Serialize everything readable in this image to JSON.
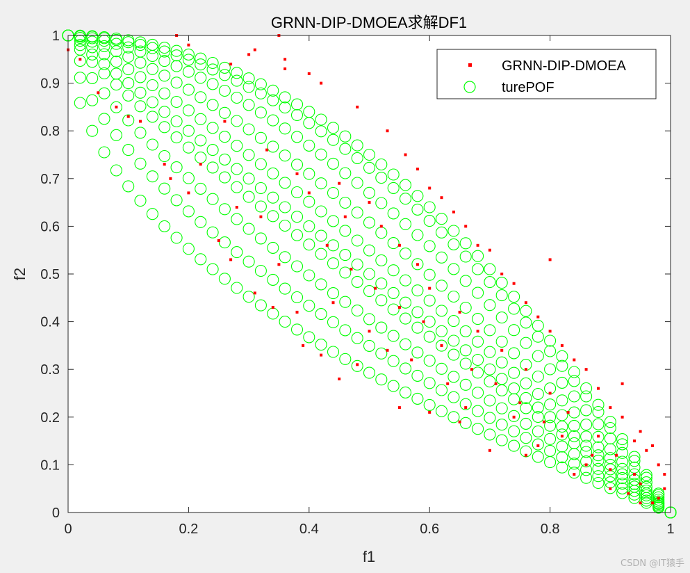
{
  "chart_data": {
    "type": "scatter",
    "title": "GRNN-DIP-DMOEA求解DF1",
    "xlabel": "f1",
    "ylabel": "f2",
    "xlim": [
      0,
      1
    ],
    "ylim": [
      0,
      1
    ],
    "xticks": [
      "0",
      "0.2",
      "0.4",
      "0.6",
      "0.8",
      "1"
    ],
    "yticks": [
      "0",
      "0.1",
      "0.2",
      "0.3",
      "0.4",
      "0.5",
      "0.6",
      "0.7",
      "0.8",
      "0.9",
      "1"
    ],
    "grid": false,
    "legend_position": "top-right",
    "series": [
      {
        "name": "GRNN-DIP-DMOEA",
        "marker": "dot",
        "color": "#ff0000",
        "points": [
          [
            0.18,
            1.0
          ],
          [
            0.35,
            1.0
          ],
          [
            0.2,
            0.98
          ],
          [
            0.3,
            0.96
          ],
          [
            0.27,
            0.94
          ],
          [
            0.36,
            0.93
          ],
          [
            0.4,
            0.92
          ],
          [
            0.42,
            0.9
          ],
          [
            0.36,
            0.95
          ],
          [
            0.31,
            0.97
          ],
          [
            0.48,
            0.85
          ],
          [
            0.53,
            0.8
          ],
          [
            0.56,
            0.75
          ],
          [
            0.58,
            0.72
          ],
          [
            0.6,
            0.68
          ],
          [
            0.62,
            0.66
          ],
          [
            0.64,
            0.63
          ],
          [
            0.66,
            0.6
          ],
          [
            0.68,
            0.56
          ],
          [
            0.7,
            0.55
          ],
          [
            0.72,
            0.5
          ],
          [
            0.74,
            0.48
          ],
          [
            0.76,
            0.44
          ],
          [
            0.78,
            0.41
          ],
          [
            0.8,
            0.38
          ],
          [
            0.82,
            0.35
          ],
          [
            0.84,
            0.32
          ],
          [
            0.86,
            0.3
          ],
          [
            0.88,
            0.26
          ],
          [
            0.9,
            0.22
          ],
          [
            0.92,
            0.2
          ],
          [
            0.94,
            0.15
          ],
          [
            0.96,
            0.13
          ],
          [
            0.98,
            0.1
          ],
          [
            0.99,
            0.08
          ],
          [
            0.92,
            0.27
          ],
          [
            0.95,
            0.17
          ],
          [
            0.97,
            0.14
          ],
          [
            0.99,
            0.05
          ],
          [
            0.98,
            0.03
          ],
          [
            0.8,
            0.53
          ],
          [
            0.1,
            0.83
          ],
          [
            0.12,
            0.82
          ],
          [
            0.16,
            0.73
          ],
          [
            0.17,
            0.7
          ],
          [
            0.2,
            0.67
          ],
          [
            0.25,
            0.57
          ],
          [
            0.27,
            0.53
          ],
          [
            0.31,
            0.46
          ],
          [
            0.34,
            0.43
          ],
          [
            0.38,
            0.42
          ],
          [
            0.39,
            0.35
          ],
          [
            0.42,
            0.33
          ],
          [
            0.45,
            0.28
          ],
          [
            0.48,
            0.31
          ],
          [
            0.55,
            0.22
          ],
          [
            0.6,
            0.21
          ],
          [
            0.65,
            0.19
          ],
          [
            0.7,
            0.13
          ],
          [
            0.76,
            0.12
          ],
          [
            0.84,
            0.08
          ],
          [
            0.9,
            0.05
          ],
          [
            0.93,
            0.04
          ],
          [
            0.95,
            0.02
          ],
          [
            0.22,
            0.73
          ],
          [
            0.28,
            0.64
          ],
          [
            0.32,
            0.62
          ],
          [
            0.35,
            0.52
          ],
          [
            0.44,
            0.44
          ],
          [
            0.5,
            0.38
          ],
          [
            0.53,
            0.34
          ],
          [
            0.57,
            0.32
          ],
          [
            0.63,
            0.27
          ],
          [
            0.66,
            0.22
          ],
          [
            0.74,
            0.2
          ],
          [
            0.78,
            0.14
          ],
          [
            0.86,
            0.1
          ],
          [
            0.45,
            0.69
          ],
          [
            0.5,
            0.65
          ],
          [
            0.52,
            0.6
          ],
          [
            0.55,
            0.56
          ],
          [
            0.58,
            0.52
          ],
          [
            0.6,
            0.47
          ],
          [
            0.65,
            0.42
          ],
          [
            0.68,
            0.38
          ],
          [
            0.72,
            0.34
          ],
          [
            0.76,
            0.3
          ],
          [
            0.8,
            0.25
          ],
          [
            0.83,
            0.21
          ],
          [
            0.88,
            0.16
          ],
          [
            0.91,
            0.12
          ],
          [
            0.94,
            0.08
          ],
          [
            0.05,
            0.88
          ],
          [
            0.08,
            0.85
          ],
          [
            0.02,
            0.95
          ],
          [
            0.0,
            0.97
          ],
          [
            0.26,
            0.82
          ],
          [
            0.33,
            0.76
          ],
          [
            0.38,
            0.71
          ],
          [
            0.4,
            0.67
          ],
          [
            0.46,
            0.62
          ],
          [
            0.43,
            0.56
          ],
          [
            0.47,
            0.51
          ],
          [
            0.51,
            0.47
          ],
          [
            0.55,
            0.43
          ],
          [
            0.59,
            0.4
          ],
          [
            0.62,
            0.35
          ],
          [
            0.67,
            0.3
          ],
          [
            0.71,
            0.27
          ],
          [
            0.75,
            0.23
          ],
          [
            0.79,
            0.19
          ],
          [
            0.82,
            0.16
          ],
          [
            0.87,
            0.12
          ],
          [
            0.9,
            0.09
          ],
          [
            0.95,
            0.06
          ],
          [
            0.97,
            0.02
          ]
        ]
      },
      {
        "name": "turePOF",
        "marker": "circle",
        "color": "#00ff00",
        "curve_exponents": [
          0.5,
          0.62,
          0.75,
          0.9,
          1.0,
          1.15,
          1.35,
          1.6,
          1.85,
          2.0
        ],
        "samples_per_curve": 50
      }
    ]
  },
  "watermark": "CSDN @IT猿手"
}
